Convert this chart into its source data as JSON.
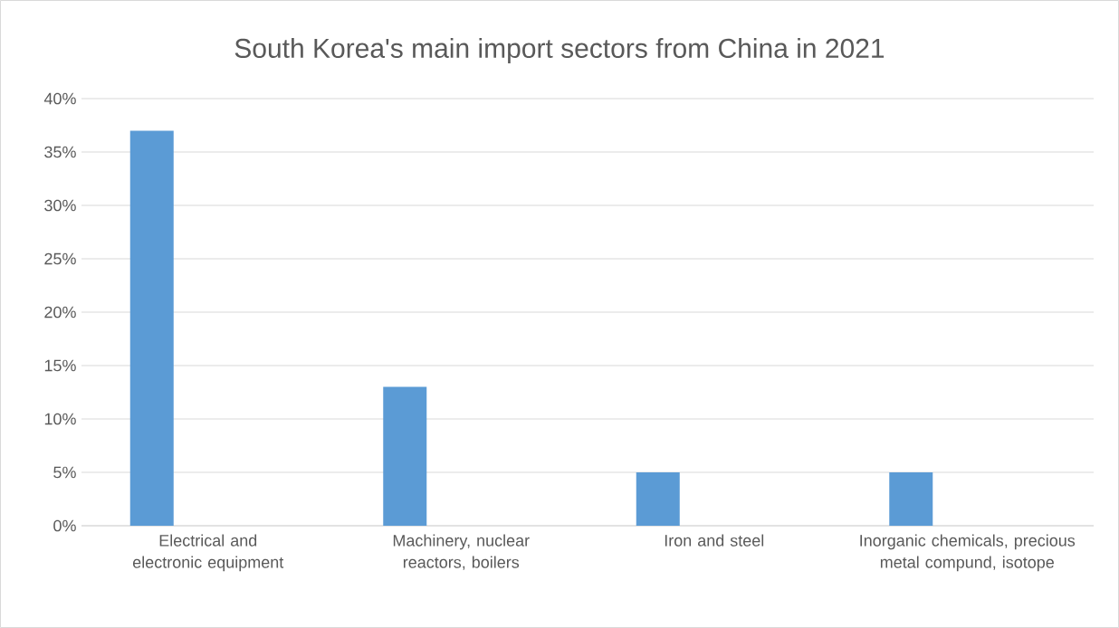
{
  "chart_data": {
    "type": "bar",
    "title": "South Korea's main import sectors from China in 2021",
    "categories": [
      "Electrical and electronic equipment",
      "Machinery, nuclear reactors, boilers",
      "Iron and steel",
      "Inorganic chemicals, precious metal compund, isotope"
    ],
    "values": [
      37,
      13,
      5,
      5
    ],
    "color": "#5b9bd5",
    "ylim": [
      0,
      40
    ],
    "yticks": [
      {
        "value": 0,
        "label": "0%"
      },
      {
        "value": 5,
        "label": "5%"
      },
      {
        "value": 10,
        "label": "10%"
      },
      {
        "value": 15,
        "label": "15%"
      },
      {
        "value": 20,
        "label": "20%"
      },
      {
        "value": 25,
        "label": "25%"
      },
      {
        "value": 30,
        "label": "30%"
      },
      {
        "value": 35,
        "label": "35%"
      },
      {
        "value": 40,
        "label": "40%"
      }
    ],
    "grid": "y"
  }
}
